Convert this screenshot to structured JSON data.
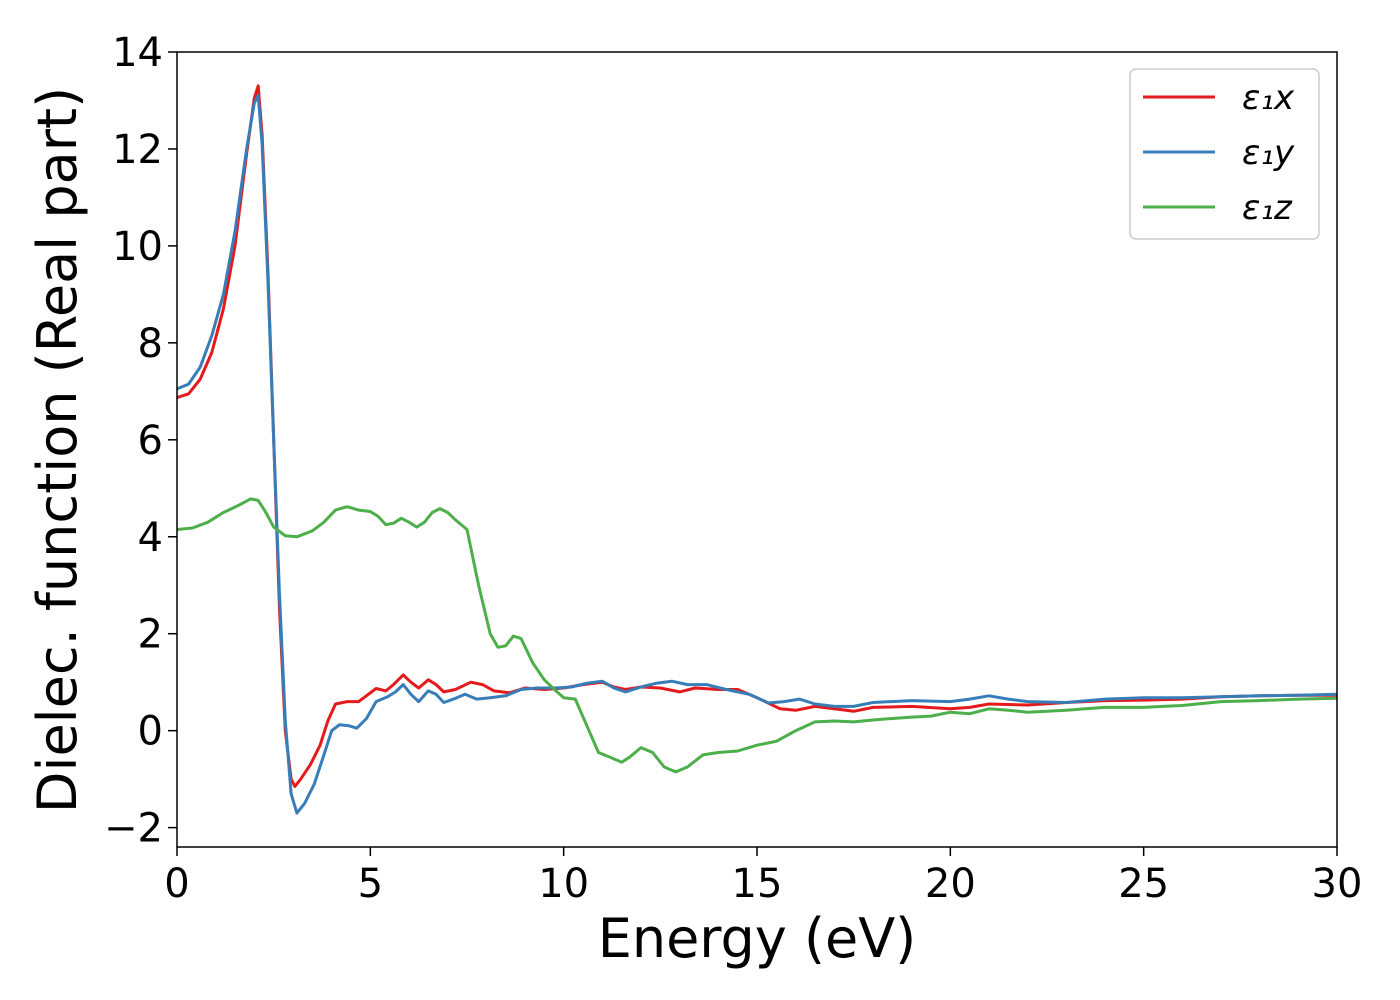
{
  "chart_data": {
    "type": "line",
    "xlabel": "Energy (eV)",
    "ylabel": "Dielec. function (Real part)",
    "xlim": [
      0,
      30
    ],
    "ylim": [
      -2.4,
      14
    ],
    "xticks": [
      0,
      5,
      10,
      15,
      20,
      25,
      30
    ],
    "yticks": [
      -2,
      0,
      2,
      4,
      6,
      8,
      10,
      12,
      14
    ],
    "xtick_labels": [
      "0",
      "5",
      "10",
      "15",
      "20",
      "25",
      "30"
    ],
    "ytick_labels": [
      "−2",
      "0",
      "2",
      "4",
      "6",
      "8",
      "10",
      "12",
      "14"
    ],
    "grid": false,
    "legend_position": "top-right",
    "series": [
      {
        "name": "ε₁x",
        "color": "#e41a1c",
        "points": [
          [
            0,
            6.87
          ],
          [
            0.3,
            6.95
          ],
          [
            0.6,
            7.25
          ],
          [
            0.9,
            7.8
          ],
          [
            1.2,
            8.7
          ],
          [
            1.5,
            10.0
          ],
          [
            1.8,
            11.9
          ],
          [
            2.0,
            13.05
          ],
          [
            2.1,
            13.3
          ],
          [
            2.2,
            12.3
          ],
          [
            2.35,
            9.5
          ],
          [
            2.5,
            6.0
          ],
          [
            2.65,
            2.5
          ],
          [
            2.8,
            0.0
          ],
          [
            2.95,
            -1.0
          ],
          [
            3.05,
            -1.15
          ],
          [
            3.2,
            -1.0
          ],
          [
            3.45,
            -0.7
          ],
          [
            3.7,
            -0.3
          ],
          [
            3.9,
            0.2
          ],
          [
            4.1,
            0.55
          ],
          [
            4.4,
            0.6
          ],
          [
            4.7,
            0.6
          ],
          [
            4.95,
            0.75
          ],
          [
            5.15,
            0.87
          ],
          [
            5.4,
            0.82
          ],
          [
            5.6,
            0.95
          ],
          [
            5.85,
            1.15
          ],
          [
            6.05,
            1.0
          ],
          [
            6.25,
            0.88
          ],
          [
            6.5,
            1.05
          ],
          [
            6.7,
            0.95
          ],
          [
            6.9,
            0.8
          ],
          [
            7.2,
            0.85
          ],
          [
            7.6,
            1.0
          ],
          [
            7.9,
            0.95
          ],
          [
            8.2,
            0.82
          ],
          [
            8.6,
            0.78
          ],
          [
            9.0,
            0.88
          ],
          [
            9.5,
            0.85
          ],
          [
            10.0,
            0.88
          ],
          [
            10.5,
            0.95
          ],
          [
            11.0,
            1.0
          ],
          [
            11.3,
            0.9
          ],
          [
            11.6,
            0.85
          ],
          [
            12.0,
            0.9
          ],
          [
            12.5,
            0.88
          ],
          [
            13.0,
            0.8
          ],
          [
            13.4,
            0.88
          ],
          [
            14.0,
            0.85
          ],
          [
            14.5,
            0.85
          ],
          [
            15.0,
            0.68
          ],
          [
            15.6,
            0.45
          ],
          [
            16.0,
            0.42
          ],
          [
            16.5,
            0.5
          ],
          [
            17.0,
            0.45
          ],
          [
            17.5,
            0.4
          ],
          [
            18.0,
            0.48
          ],
          [
            19.0,
            0.5
          ],
          [
            20.0,
            0.45
          ],
          [
            20.5,
            0.48
          ],
          [
            21.0,
            0.55
          ],
          [
            22.0,
            0.53
          ],
          [
            23.0,
            0.58
          ],
          [
            24.0,
            0.62
          ],
          [
            25.0,
            0.63
          ],
          [
            26.0,
            0.65
          ],
          [
            27.0,
            0.7
          ],
          [
            28.0,
            0.72
          ],
          [
            29.0,
            0.73
          ],
          [
            30.0,
            0.73
          ]
        ]
      },
      {
        "name": "ε₁y",
        "color": "#377eb8",
        "points": [
          [
            0,
            7.05
          ],
          [
            0.3,
            7.15
          ],
          [
            0.6,
            7.5
          ],
          [
            0.9,
            8.15
          ],
          [
            1.2,
            9.0
          ],
          [
            1.5,
            10.3
          ],
          [
            1.8,
            12.0
          ],
          [
            2.0,
            12.95
          ],
          [
            2.1,
            13.1
          ],
          [
            2.2,
            12.1
          ],
          [
            2.35,
            9.3
          ],
          [
            2.5,
            6.0
          ],
          [
            2.65,
            2.8
          ],
          [
            2.8,
            0.2
          ],
          [
            2.95,
            -1.3
          ],
          [
            3.1,
            -1.7
          ],
          [
            3.3,
            -1.5
          ],
          [
            3.55,
            -1.1
          ],
          [
            3.8,
            -0.5
          ],
          [
            4.0,
            0.0
          ],
          [
            4.2,
            0.12
          ],
          [
            4.45,
            0.1
          ],
          [
            4.65,
            0.05
          ],
          [
            4.9,
            0.25
          ],
          [
            5.15,
            0.6
          ],
          [
            5.45,
            0.7
          ],
          [
            5.65,
            0.8
          ],
          [
            5.85,
            0.95
          ],
          [
            6.05,
            0.75
          ],
          [
            6.25,
            0.6
          ],
          [
            6.5,
            0.82
          ],
          [
            6.7,
            0.75
          ],
          [
            6.9,
            0.58
          ],
          [
            7.15,
            0.65
          ],
          [
            7.45,
            0.75
          ],
          [
            7.75,
            0.65
          ],
          [
            8.1,
            0.68
          ],
          [
            8.5,
            0.72
          ],
          [
            8.9,
            0.85
          ],
          [
            9.3,
            0.88
          ],
          [
            9.8,
            0.88
          ],
          [
            10.2,
            0.9
          ],
          [
            10.6,
            0.98
          ],
          [
            11.0,
            1.02
          ],
          [
            11.3,
            0.88
          ],
          [
            11.6,
            0.8
          ],
          [
            12.0,
            0.9
          ],
          [
            12.4,
            0.98
          ],
          [
            12.8,
            1.02
          ],
          [
            13.2,
            0.95
          ],
          [
            13.7,
            0.95
          ],
          [
            14.2,
            0.85
          ],
          [
            14.8,
            0.75
          ],
          [
            15.3,
            0.57
          ],
          [
            15.7,
            0.6
          ],
          [
            16.1,
            0.65
          ],
          [
            16.5,
            0.55
          ],
          [
            17.0,
            0.5
          ],
          [
            17.5,
            0.5
          ],
          [
            18.0,
            0.58
          ],
          [
            19.0,
            0.62
          ],
          [
            20.0,
            0.6
          ],
          [
            20.5,
            0.65
          ],
          [
            21.0,
            0.72
          ],
          [
            21.5,
            0.65
          ],
          [
            22.0,
            0.6
          ],
          [
            23.0,
            0.58
          ],
          [
            24.0,
            0.65
          ],
          [
            25.0,
            0.68
          ],
          [
            26.0,
            0.68
          ],
          [
            27.0,
            0.7
          ],
          [
            28.0,
            0.72
          ],
          [
            29.0,
            0.73
          ],
          [
            30.0,
            0.75
          ]
        ]
      },
      {
        "name": "ε₁z",
        "color": "#4daf4a",
        "points": [
          [
            0,
            4.15
          ],
          [
            0.4,
            4.18
          ],
          [
            0.8,
            4.3
          ],
          [
            1.2,
            4.5
          ],
          [
            1.6,
            4.65
          ],
          [
            1.9,
            4.78
          ],
          [
            2.1,
            4.75
          ],
          [
            2.3,
            4.5
          ],
          [
            2.5,
            4.2
          ],
          [
            2.8,
            4.02
          ],
          [
            3.1,
            4.0
          ],
          [
            3.5,
            4.12
          ],
          [
            3.8,
            4.3
          ],
          [
            4.1,
            4.55
          ],
          [
            4.4,
            4.62
          ],
          [
            4.7,
            4.55
          ],
          [
            5.0,
            4.52
          ],
          [
            5.2,
            4.42
          ],
          [
            5.4,
            4.25
          ],
          [
            5.6,
            4.28
          ],
          [
            5.8,
            4.38
          ],
          [
            6.0,
            4.3
          ],
          [
            6.2,
            4.2
          ],
          [
            6.4,
            4.3
          ],
          [
            6.6,
            4.5
          ],
          [
            6.8,
            4.58
          ],
          [
            7.0,
            4.5
          ],
          [
            7.2,
            4.35
          ],
          [
            7.5,
            4.15
          ],
          [
            7.8,
            3.0
          ],
          [
            8.1,
            2.0
          ],
          [
            8.3,
            1.72
          ],
          [
            8.5,
            1.75
          ],
          [
            8.7,
            1.95
          ],
          [
            8.9,
            1.9
          ],
          [
            9.2,
            1.4
          ],
          [
            9.5,
            1.05
          ],
          [
            9.8,
            0.82
          ],
          [
            10.0,
            0.68
          ],
          [
            10.3,
            0.65
          ],
          [
            10.6,
            0.1
          ],
          [
            10.9,
            -0.45
          ],
          [
            11.2,
            -0.55
          ],
          [
            11.5,
            -0.65
          ],
          [
            11.7,
            -0.55
          ],
          [
            12.0,
            -0.35
          ],
          [
            12.3,
            -0.45
          ],
          [
            12.6,
            -0.75
          ],
          [
            12.9,
            -0.85
          ],
          [
            13.2,
            -0.75
          ],
          [
            13.6,
            -0.5
          ],
          [
            14.0,
            -0.45
          ],
          [
            14.5,
            -0.42
          ],
          [
            15.0,
            -0.3
          ],
          [
            15.5,
            -0.22
          ],
          [
            16.0,
            0.0
          ],
          [
            16.5,
            0.18
          ],
          [
            17.0,
            0.2
          ],
          [
            17.5,
            0.18
          ],
          [
            18.0,
            0.22
          ],
          [
            18.5,
            0.25
          ],
          [
            19.0,
            0.28
          ],
          [
            19.5,
            0.3
          ],
          [
            20.0,
            0.38
          ],
          [
            20.5,
            0.35
          ],
          [
            21.0,
            0.45
          ],
          [
            21.5,
            0.42
          ],
          [
            22.0,
            0.38
          ],
          [
            22.5,
            0.4
          ],
          [
            23.0,
            0.42
          ],
          [
            23.5,
            0.45
          ],
          [
            24.0,
            0.48
          ],
          [
            24.5,
            0.48
          ],
          [
            25.0,
            0.48
          ],
          [
            25.5,
            0.5
          ],
          [
            26.0,
            0.52
          ],
          [
            27.0,
            0.6
          ],
          [
            28.0,
            0.62
          ],
          [
            29.0,
            0.65
          ],
          [
            30.0,
            0.67
          ]
        ]
      }
    ]
  }
}
